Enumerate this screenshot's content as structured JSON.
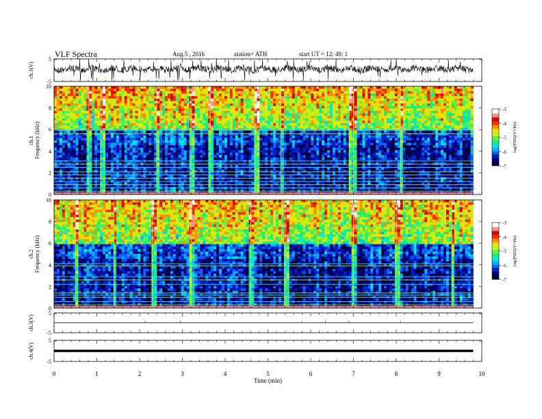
{
  "header": {
    "title": "VLF  Spectra",
    "date": "Aug.5  , 2016",
    "station": "station= ATH",
    "start": "start  UT  =    12: 40: 1"
  },
  "colors": {
    "colormap": [
      "#000030",
      "#000080",
      "#0020c0",
      "#1060ff",
      "#00b0ff",
      "#00e8e0",
      "#10f080",
      "#60f040",
      "#c0f020",
      "#f0e000",
      "#ff9000",
      "#f03000",
      "#e00000",
      "#ff9090",
      "#ffffff"
    ]
  },
  "chart_data": [
    {
      "type": "line",
      "panel": "ch1-waveform",
      "ylabel": "ch.1(V)",
      "ylim": [
        -5,
        5
      ],
      "yticks": [
        "5",
        "-5"
      ]
    },
    {
      "type": "heatmap",
      "panel": "ch1-spectrogram",
      "ylabel_line1": "ch.1",
      "ylabel_line2": "Frequency  (kHz)",
      "ylim": [
        0,
        10
      ],
      "yticks": [
        "0",
        "2",
        "4",
        "6",
        "8",
        "10"
      ],
      "colorbar": {
        "label": "log(PSD)(V²/Hz)",
        "range": [
          -7,
          -3
        ],
        "ticks": [
          "-3",
          "-4",
          "-5",
          "-6",
          "-7"
        ]
      },
      "features": {
        "high_band_khz": [
          6.0,
          10.0
        ],
        "low_band_khz": [
          0.0,
          5.5
        ],
        "horizontal_lines_khz": [
          0.3,
          0.6,
          0.9,
          1.2,
          1.5,
          1.8,
          2.1,
          2.5,
          2.8,
          3.1,
          5.6,
          6.0
        ],
        "vertical_spike_times_min": [
          0.8,
          1.1,
          2.4,
          3.2,
          3.65,
          4.7,
          5.3,
          6.9,
          7.0,
          8.1
        ]
      }
    },
    {
      "type": "heatmap",
      "panel": "ch2-spectrogram",
      "ylabel_line1": "ch.2",
      "ylabel_line2": "Frequency  (kHz)",
      "ylim": [
        0,
        10
      ],
      "yticks": [
        "0",
        "2",
        "4",
        "6",
        "8",
        "10"
      ],
      "colorbar": {
        "label": "log(PSD)(V²/Hz)",
        "range": [
          -7,
          -3
        ],
        "ticks": [
          "-3",
          "-4",
          "-5",
          "-6",
          "-7"
        ]
      },
      "features": {
        "high_band_khz": [
          6.0,
          10.0
        ],
        "low_band_khz": [
          0.0,
          5.5
        ],
        "horizontal_lines_khz": [
          0.3,
          0.6,
          1.0,
          1.2,
          1.4,
          2.2,
          2.6,
          2.9,
          3.9,
          4.1
        ],
        "vertical_spike_times_min": [
          0.5,
          1.4,
          2.3,
          3.2,
          4.6,
          5.4,
          7.0,
          8.0,
          9.3
        ]
      }
    },
    {
      "type": "line",
      "panel": "ch3-waveform",
      "ylabel": "ch.3(V)",
      "ylim": [
        -5,
        5
      ],
      "yticks": [
        "5",
        "-5"
      ],
      "level": 0
    },
    {
      "type": "line",
      "panel": "ch4-waveform",
      "ylabel": "ch.4(V)",
      "ylim": [
        -5,
        5
      ],
      "yticks": [
        "5",
        "-5"
      ],
      "level": 0
    },
    {
      "type": "axis",
      "panel": "time-axis",
      "xlabel": "Time  (min)",
      "xlim": [
        0,
        10
      ],
      "xticks": [
        "0",
        "1",
        "2",
        "3",
        "4",
        "5",
        "6",
        "7",
        "8",
        "9",
        "10"
      ],
      "data_end_min": 9.8
    }
  ]
}
